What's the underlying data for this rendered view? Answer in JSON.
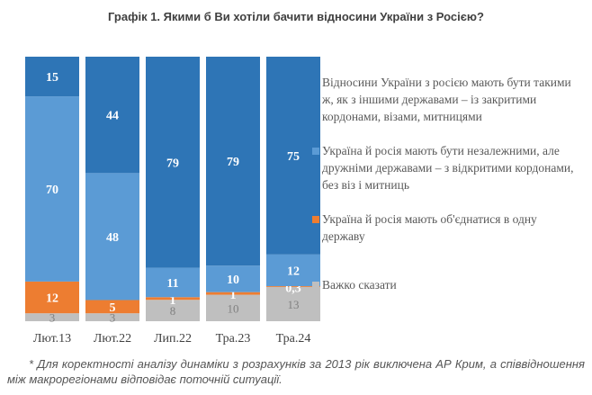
{
  "chart_data": {
    "type": "bar",
    "stacked": true,
    "title": "Графік 1. Якими б Ви хотіли бачити відносини України з Росією?",
    "categories": [
      "Лют.13",
      "Лют.22",
      "Лип.22",
      "Тра.23",
      "Тра.24"
    ],
    "series": [
      {
        "name": "Важко сказати",
        "color": "#BFBFBF",
        "label_color": "#808080",
        "values": [
          3,
          3,
          8,
          10,
          13
        ],
        "labels": [
          "3",
          "3",
          "8",
          "10",
          "13"
        ]
      },
      {
        "name": "Україна й росія мають об'єднатися в одну державу",
        "color": "#ED7D31",
        "label_color": "#FFFFFF",
        "values": [
          12,
          5,
          1,
          1,
          0.3
        ],
        "labels": [
          "12",
          "5",
          "1",
          "1",
          "0,3"
        ]
      },
      {
        "name": "Україна й росія мають бути незалежними, але дружніми державами – з відкритими кордонами, без віз і митниць",
        "color": "#5B9BD5",
        "label_color": "#FFFFFF",
        "values": [
          70,
          48,
          11,
          10,
          12
        ],
        "labels": [
          "70",
          "48",
          "11",
          "10",
          "12"
        ]
      },
      {
        "name": "Відносини України з росією мають бути такими ж, як з іншими державами – із закритими кордонами, візами, митницями",
        "color": "#2E75B6",
        "label_color": "#FFFFFF",
        "values": [
          15,
          44,
          79,
          79,
          75
        ],
        "labels": [
          "15",
          "44",
          "79",
          "79",
          "75"
        ]
      }
    ],
    "legend_position": "right",
    "grid": false
  },
  "footnote": "* Для коректності аналізу динаміки з розрахунків за 2013 рік виключена АР Крим, а співвідношення між макрорегіонами відповідає поточній ситуації."
}
